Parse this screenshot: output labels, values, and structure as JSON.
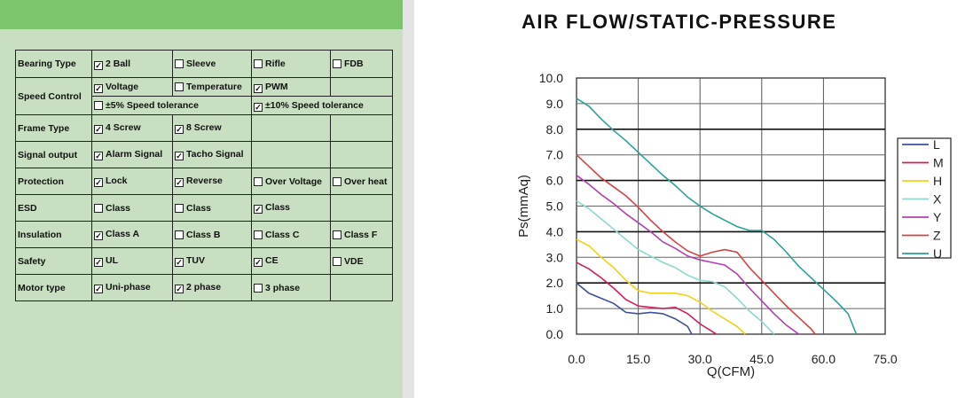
{
  "spec_table": {
    "bearing_type": {
      "label": "Bearing Type",
      "options": [
        {
          "text": "2 Ball",
          "checked": true
        },
        {
          "text": "Sleeve",
          "checked": false
        },
        {
          "text": "Rifle",
          "checked": false
        },
        {
          "text": "FDB",
          "checked": false
        }
      ]
    },
    "speed_control": {
      "label": "Speed Control",
      "options": [
        {
          "text": "Voltage",
          "checked": true
        },
        {
          "text": "Temperature",
          "checked": false
        },
        {
          "text": "PWM",
          "checked": true
        },
        {
          "text": "±5% Speed tolerance",
          "checked": false
        },
        {
          "text": "±10% Speed tolerance",
          "checked": true
        }
      ]
    },
    "frame_type": {
      "label": "Frame Type",
      "options": [
        {
          "text": "4 Screw",
          "checked": true
        },
        {
          "text": "8 Screw",
          "checked": true
        }
      ]
    },
    "signal_output": {
      "label": "Signal output",
      "options": [
        {
          "text": "Alarm Signal",
          "checked": true
        },
        {
          "text": "Tacho Signal",
          "checked": true
        }
      ]
    },
    "protection": {
      "label": "Protection",
      "options": [
        {
          "text": "Lock",
          "checked": true
        },
        {
          "text": "Reverse",
          "checked": true
        },
        {
          "text": "Over Voltage",
          "checked": false
        },
        {
          "text": "Over heat",
          "checked": false
        }
      ]
    },
    "esd": {
      "label": "ESD",
      "options": [
        {
          "text": "Class",
          "checked": false
        },
        {
          "text": "Class",
          "checked": false
        },
        {
          "text": "Class",
          "checked": true
        }
      ]
    },
    "insulation": {
      "label": "Insulation",
      "options": [
        {
          "text": "Class A",
          "checked": true
        },
        {
          "text": "Class B",
          "checked": false
        },
        {
          "text": "Class C",
          "checked": false
        },
        {
          "text": "Class F",
          "checked": false
        }
      ]
    },
    "safety": {
      "label": "Safety",
      "options": [
        {
          "text": "UL",
          "checked": true
        },
        {
          "text": "TUV",
          "checked": true
        },
        {
          "text": "CE",
          "checked": true
        },
        {
          "text": "VDE",
          "checked": false
        }
      ]
    },
    "motor_type": {
      "label": "Motor type",
      "options": [
        {
          "text": "Uni-phase",
          "checked": true
        },
        {
          "text": "2 phase",
          "checked": true
        },
        {
          "text": "3 phase",
          "checked": false
        }
      ]
    }
  },
  "checkmark_glyph": "✓",
  "chart_data": {
    "type": "line",
    "title": "AIR FLOW/STATIC-PRESSURE",
    "xlabel": "Q(CFM)",
    "ylabel": "Ps(mmAq)",
    "xlim": [
      0,
      75
    ],
    "ylim": [
      0,
      10
    ],
    "xticks": [
      "0.0",
      "15.0",
      "30.0",
      "45.0",
      "60.0",
      "75.0"
    ],
    "yticks": [
      "0.0",
      "1.0",
      "2.0",
      "3.0",
      "4.0",
      "5.0",
      "6.0",
      "7.0",
      "8.0",
      "9.0",
      "10.0"
    ],
    "grid": true,
    "legend_position": "right",
    "series": [
      {
        "name": "L",
        "color": "#3f4f9e",
        "points": [
          [
            0,
            2.0
          ],
          [
            3,
            1.6
          ],
          [
            6,
            1.4
          ],
          [
            9,
            1.2
          ],
          [
            12,
            0.85
          ],
          [
            15,
            0.8
          ],
          [
            18,
            0.85
          ],
          [
            21,
            0.8
          ],
          [
            24,
            0.6
          ],
          [
            27,
            0.3
          ],
          [
            28,
            0.0
          ]
        ]
      },
      {
        "name": "M",
        "color": "#d81b60",
        "points": [
          [
            0,
            2.8
          ],
          [
            3,
            2.55
          ],
          [
            6,
            2.2
          ],
          [
            9,
            1.8
          ],
          [
            12,
            1.35
          ],
          [
            15,
            1.1
          ],
          [
            18,
            1.05
          ],
          [
            21,
            1.0
          ],
          [
            24,
            1.05
          ],
          [
            27,
            0.8
          ],
          [
            30,
            0.4
          ],
          [
            33,
            0.1
          ],
          [
            34,
            0.0
          ]
        ]
      },
      {
        "name": "H",
        "color": "#f1d217",
        "points": [
          [
            0,
            3.7
          ],
          [
            3,
            3.45
          ],
          [
            6,
            3.0
          ],
          [
            9,
            2.6
          ],
          [
            12,
            2.1
          ],
          [
            15,
            1.7
          ],
          [
            18,
            1.6
          ],
          [
            21,
            1.6
          ],
          [
            24,
            1.6
          ],
          [
            27,
            1.5
          ],
          [
            30,
            1.25
          ],
          [
            33,
            0.9
          ],
          [
            36,
            0.6
          ],
          [
            39,
            0.3
          ],
          [
            41,
            0.0
          ]
        ]
      },
      {
        "name": "X",
        "color": "#8ed8d0",
        "points": [
          [
            0,
            5.2
          ],
          [
            3,
            4.9
          ],
          [
            6,
            4.5
          ],
          [
            9,
            4.1
          ],
          [
            12,
            3.7
          ],
          [
            15,
            3.3
          ],
          [
            18,
            3.05
          ],
          [
            21,
            2.8
          ],
          [
            24,
            2.6
          ],
          [
            27,
            2.3
          ],
          [
            30,
            2.1
          ],
          [
            33,
            2.05
          ],
          [
            36,
            1.85
          ],
          [
            39,
            1.4
          ],
          [
            42,
            0.9
          ],
          [
            45,
            0.5
          ],
          [
            48,
            0.0
          ]
        ]
      },
      {
        "name": "Y",
        "color": "#b03fb0",
        "points": [
          [
            0,
            6.2
          ],
          [
            3,
            5.85
          ],
          [
            6,
            5.45
          ],
          [
            9,
            5.1
          ],
          [
            12,
            4.7
          ],
          [
            15,
            4.35
          ],
          [
            18,
            4.0
          ],
          [
            21,
            3.6
          ],
          [
            24,
            3.35
          ],
          [
            27,
            3.05
          ],
          [
            30,
            2.9
          ],
          [
            33,
            2.8
          ],
          [
            36,
            2.7
          ],
          [
            39,
            2.35
          ],
          [
            42,
            1.8
          ],
          [
            45,
            1.3
          ],
          [
            48,
            0.8
          ],
          [
            51,
            0.35
          ],
          [
            54,
            0.0
          ]
        ]
      },
      {
        "name": "Z",
        "color": "#d64141",
        "points": [
          [
            0,
            7.0
          ],
          [
            3,
            6.55
          ],
          [
            6,
            6.1
          ],
          [
            9,
            5.75
          ],
          [
            12,
            5.4
          ],
          [
            15,
            4.95
          ],
          [
            18,
            4.45
          ],
          [
            21,
            4.0
          ],
          [
            24,
            3.6
          ],
          [
            27,
            3.25
          ],
          [
            30,
            3.05
          ],
          [
            33,
            3.2
          ],
          [
            36,
            3.3
          ],
          [
            39,
            3.2
          ],
          [
            42,
            2.6
          ],
          [
            45,
            2.1
          ],
          [
            48,
            1.6
          ],
          [
            51,
            1.1
          ],
          [
            54,
            0.65
          ],
          [
            57,
            0.2
          ],
          [
            58,
            0.0
          ]
        ]
      },
      {
        "name": "U",
        "color": "#2aa198",
        "points": [
          [
            0,
            9.2
          ],
          [
            3,
            8.9
          ],
          [
            6,
            8.4
          ],
          [
            9,
            7.95
          ],
          [
            12,
            7.55
          ],
          [
            15,
            7.1
          ],
          [
            18,
            6.65
          ],
          [
            21,
            6.2
          ],
          [
            24,
            5.8
          ],
          [
            27,
            5.35
          ],
          [
            30,
            5.0
          ],
          [
            33,
            4.7
          ],
          [
            36,
            4.45
          ],
          [
            39,
            4.2
          ],
          [
            42,
            4.05
          ],
          [
            45,
            4.05
          ],
          [
            48,
            3.7
          ],
          [
            51,
            3.2
          ],
          [
            54,
            2.65
          ],
          [
            57,
            2.2
          ],
          [
            60,
            1.75
          ],
          [
            63,
            1.3
          ],
          [
            66,
            0.8
          ],
          [
            68,
            0.0
          ]
        ]
      }
    ]
  }
}
